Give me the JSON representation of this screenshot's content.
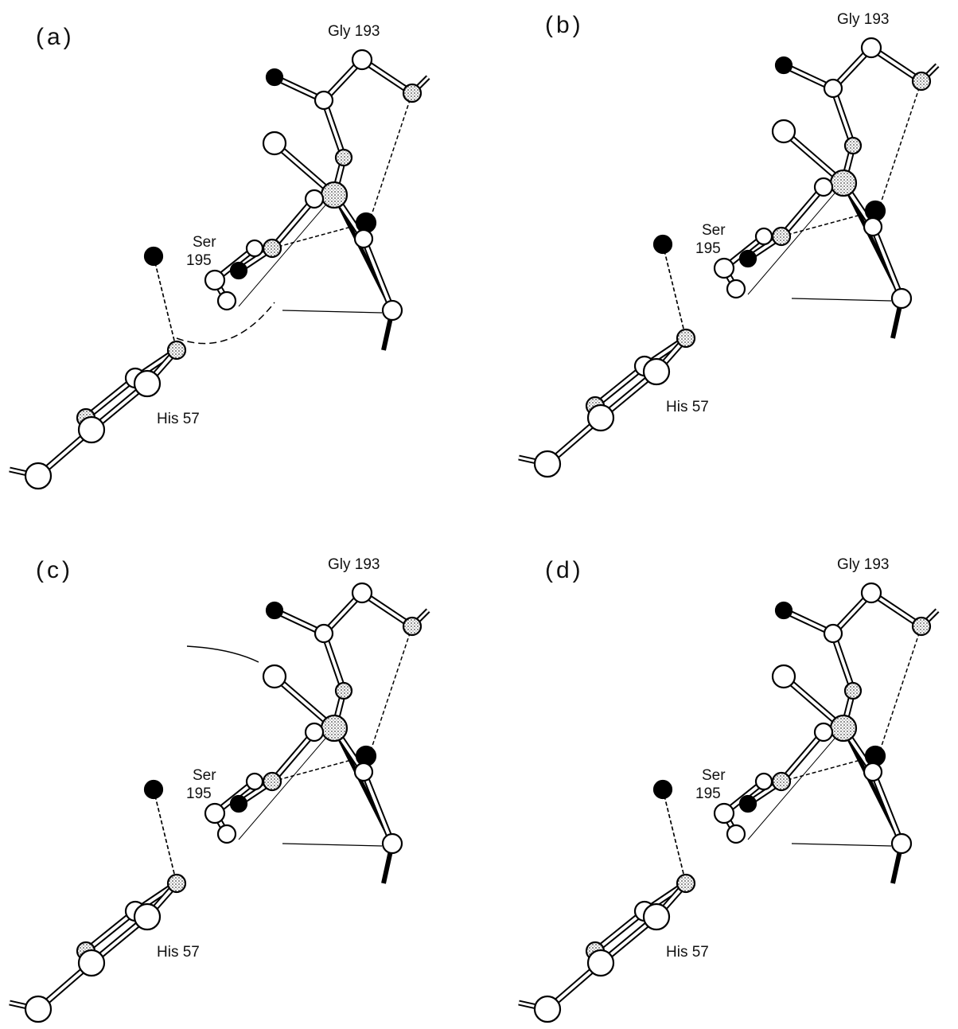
{
  "panels": [
    {
      "label": "(a)",
      "gly": "Gly 193",
      "ser": "Ser",
      "ser_num": "195",
      "his": "His 57"
    },
    {
      "label": "(b)",
      "gly": "Gly 193",
      "ser": "Ser",
      "ser_num": "195",
      "his": "His 57"
    },
    {
      "label": "(c)",
      "gly": "Gly 193",
      "ser": "Ser",
      "ser_num": "195",
      "his": "His 57"
    },
    {
      "label": "(d)",
      "gly": "Gly 193",
      "ser": "Ser",
      "ser_num": "195",
      "his": "His 57"
    }
  ]
}
